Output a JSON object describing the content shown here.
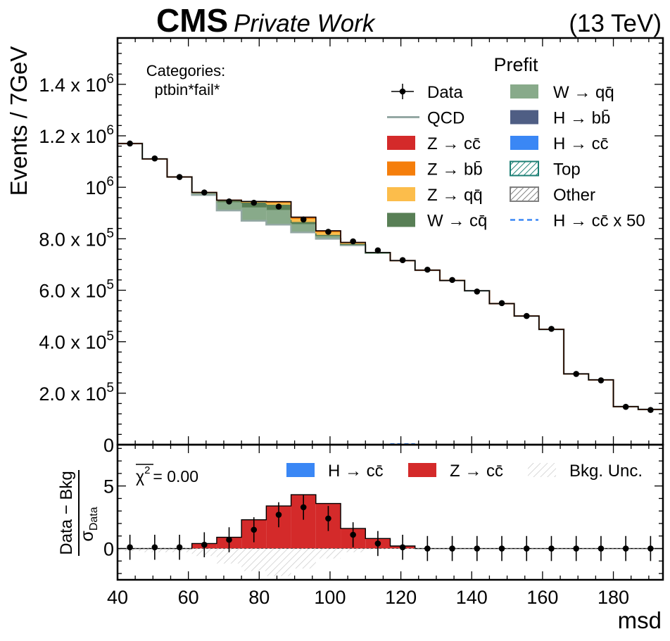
{
  "header": {
    "experiment": "CMS",
    "label": "Private Work",
    "energy": "(13 TeV)"
  },
  "chart_data": [
    {
      "type": "bar",
      "panel": "main",
      "stacked_step_histogram": true,
      "annotation": [
        "Categories:",
        "ptbin*fail*"
      ],
      "legend_title": "Prefit",
      "legend_placement": "top-right",
      "ylabel": "Events / 7GeV",
      "ylim": [
        0,
        1580000
      ],
      "xlim": [
        40,
        194
      ],
      "bin_edges": [
        40,
        47,
        54,
        61,
        68,
        75,
        82,
        89,
        96,
        103,
        110,
        117,
        124,
        131,
        138,
        145,
        152,
        159,
        166,
        173,
        180,
        187,
        194
      ],
      "yticks": [
        {
          "value": 0,
          "label": "0"
        },
        {
          "value": 200000,
          "label": "2.0 x 10",
          "exp": "5"
        },
        {
          "value": 400000,
          "label": "4.0 x 10",
          "exp": "5"
        },
        {
          "value": 600000,
          "label": "6.0 x 10",
          "exp": "5"
        },
        {
          "value": 800000,
          "label": "8.0 x 10",
          "exp": "5"
        },
        {
          "value": 1000000,
          "label": "10",
          "exp": "6"
        },
        {
          "value": 1200000,
          "label": "1.2 x 10",
          "exp": "6"
        },
        {
          "value": 1400000,
          "label": "1.4 x 10",
          "exp": "6"
        }
      ],
      "legend": [
        {
          "label": "Data",
          "style": "marker",
          "color": "#000000"
        },
        {
          "label": "QCD",
          "style": "line",
          "color": "#94a8a4"
        },
        {
          "label": "Z → cc̄",
          "style": "fill",
          "color": "#d42a2a"
        },
        {
          "label": "Z → bb̄",
          "style": "fill",
          "color": "#f57e0b"
        },
        {
          "label": "Z → qq̄",
          "style": "fill",
          "color": "#fcbd4b"
        },
        {
          "label": "W → cq̄",
          "style": "fill",
          "color": "#587f55"
        },
        {
          "label": "W → qq̄",
          "style": "fill",
          "color": "#88aa8a"
        },
        {
          "label": "H → bb̄",
          "style": "fill",
          "color": "#4f5e84"
        },
        {
          "label": "H → cc̄",
          "style": "fill",
          "color": "#3a87f5"
        },
        {
          "label": "Top",
          "style": "hatch",
          "color": "#1b7f74"
        },
        {
          "label": "Other",
          "style": "hatch",
          "color": "#7f7f7f"
        },
        {
          "label": "H → cc̄ x 50",
          "style": "dashed",
          "color": "#3a87f5"
        }
      ],
      "series": [
        {
          "name": "QCD",
          "values": [
            1170000,
            1110000,
            1040000,
            970000,
            910000,
            870000,
            855000,
            825000,
            800000,
            775000,
            745000,
            715000,
            678000,
            638000,
            598000,
            548000,
            500000,
            448000,
            275000,
            252000,
            148000,
            137000
          ]
        },
        {
          "name": "W → qq̄",
          "values": [
            0,
            0,
            0,
            8000,
            30000,
            50000,
            55000,
            30000,
            10000,
            3000,
            0,
            0,
            0,
            0,
            0,
            0,
            0,
            0,
            0,
            0,
            0,
            0
          ]
        },
        {
          "name": "W → cq̄",
          "values": [
            0,
            0,
            0,
            2000,
            10000,
            20000,
            20000,
            8000,
            3000,
            0,
            0,
            0,
            0,
            0,
            0,
            0,
            0,
            0,
            0,
            0,
            0,
            0
          ]
        },
        {
          "name": "Z → qq̄",
          "values": [
            0,
            0,
            0,
            0,
            0,
            3000,
            8000,
            12000,
            10000,
            5000,
            2000,
            0,
            0,
            0,
            0,
            0,
            0,
            0,
            0,
            0,
            0,
            0
          ]
        },
        {
          "name": "Z → bb̄",
          "values": [
            0,
            0,
            0,
            0,
            0,
            1000,
            4000,
            6000,
            5000,
            2000,
            0,
            0,
            0,
            0,
            0,
            0,
            0,
            0,
            0,
            0,
            0,
            0
          ]
        },
        {
          "name": "Z → cc̄",
          "values": [
            0,
            0,
            0,
            0,
            0,
            1000,
            2000,
            3000,
            3000,
            1000,
            0,
            0,
            0,
            0,
            0,
            0,
            0,
            0,
            0,
            0,
            0,
            0
          ]
        }
      ],
      "data_points": [
        1170000,
        1112000,
        1040000,
        980000,
        945000,
        940000,
        925000,
        875000,
        827000,
        790000,
        755000,
        717000,
        680000,
        640000,
        595000,
        550000,
        500000,
        450000,
        275000,
        250000,
        147000,
        135000
      ]
    },
    {
      "type": "bar",
      "panel": "ratio",
      "ylabel_numerator": "Data − Bkg",
      "ylabel_denominator": "σ",
      "ylabel_denominator_sub": "Data",
      "chi2_label": "χ",
      "chi2_exp": "2",
      "chi2_value": "= 0.00",
      "xlabel": "msd",
      "xlim": [
        40,
        194
      ],
      "ylim": [
        -2.5,
        8.3
      ],
      "yticks": [
        0,
        5
      ],
      "xticks": [
        40,
        60,
        80,
        100,
        120,
        140,
        160,
        180
      ],
      "legend": [
        {
          "label": "H → cc̄",
          "style": "fill",
          "color": "#3a87f5"
        },
        {
          "label": "Z → cc̄",
          "style": "fill",
          "color": "#d42a2a"
        },
        {
          "label": "Bkg. Unc.",
          "style": "hatch",
          "color": "#b0b0b0"
        }
      ],
      "zcc_signal": [
        0,
        0,
        0,
        0.4,
        0.9,
        2.3,
        3.4,
        4.3,
        3.6,
        1.6,
        0.8,
        0.2,
        0,
        0,
        0,
        0,
        0,
        0,
        0,
        0,
        0,
        0
      ],
      "bkg_unc": [
        0.2,
        0.3,
        0.3,
        0.6,
        1.2,
        1.8,
        2.2,
        1.6,
        0.8,
        0.3,
        0.1,
        0,
        0,
        0,
        0,
        0,
        0,
        0,
        0,
        0,
        0,
        0
      ],
      "data_points": [
        0.1,
        0.1,
        0.1,
        0.3,
        0.7,
        1.5,
        2.7,
        3.3,
        2.4,
        1.1,
        0.4,
        0.1,
        0,
        0,
        0,
        0,
        0,
        0,
        0,
        0,
        0,
        0
      ]
    }
  ]
}
